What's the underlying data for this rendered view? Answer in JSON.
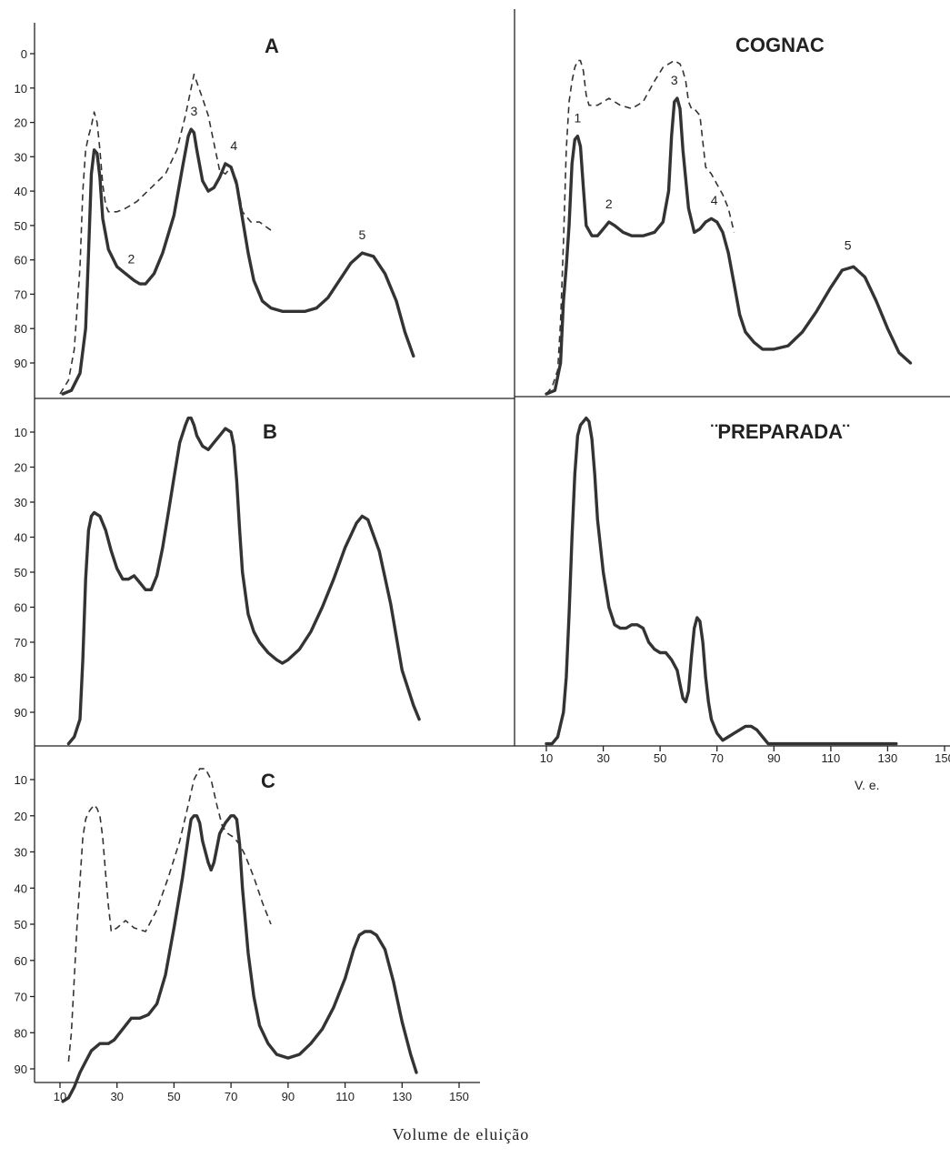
{
  "figure": {
    "caption": "Volume de eluição"
  },
  "chart_data": [
    {
      "type": "line",
      "title": "A",
      "xlabel": "",
      "ylabel": "",
      "y_inverted": true,
      "xlim": [
        8,
        158
      ],
      "ylim": [
        0,
        100
      ],
      "yticks": [
        "0",
        "10",
        "20",
        "30",
        "40",
        "50",
        "60",
        "70",
        "80",
        "90"
      ],
      "ytick_values": [
        0,
        10,
        20,
        30,
        40,
        50,
        60,
        70,
        80,
        90
      ],
      "series": [
        {
          "style": "solid",
          "x": [
            11,
            14,
            17,
            19,
            20,
            21,
            22,
            23,
            24,
            25,
            27,
            30,
            33,
            36,
            38,
            40,
            43,
            46,
            50,
            53,
            55,
            56,
            57,
            58,
            60,
            62,
            64,
            66,
            68,
            70,
            72,
            74,
            76,
            78,
            81,
            84,
            88,
            92,
            96,
            100,
            104,
            108,
            112,
            116,
            120,
            124,
            128,
            131,
            134
          ],
          "y": [
            99,
            98,
            93,
            80,
            58,
            35,
            28,
            29,
            36,
            48,
            57,
            62,
            64,
            66,
            67,
            67,
            64,
            58,
            47,
            33,
            24,
            22,
            23,
            28,
            37,
            40,
            39,
            36,
            32,
            33,
            38,
            48,
            58,
            66,
            72,
            74,
            75,
            75,
            75,
            74,
            71,
            66,
            61,
            58,
            59,
            64,
            72,
            81,
            88
          ]
        },
        {
          "style": "dashed",
          "x": [
            10,
            13,
            15,
            17,
            18,
            19,
            20,
            21,
            22,
            23,
            24,
            25,
            26,
            27,
            28,
            30,
            33,
            37,
            42,
            47,
            51,
            54,
            57,
            60,
            62,
            64,
            66,
            68,
            70,
            72,
            74,
            77,
            80,
            85
          ],
          "y": [
            99,
            95,
            86,
            62,
            40,
            28,
            24,
            21,
            17,
            20,
            28,
            38,
            44,
            46,
            46,
            46,
            45,
            43,
            39,
            35,
            28,
            18,
            6,
            13,
            18,
            26,
            34,
            35,
            33,
            37,
            46,
            49,
            49,
            52
          ]
        }
      ],
      "annotations": [
        {
          "text": "2",
          "x": 35,
          "y": 61
        },
        {
          "text": "3",
          "x": 57,
          "y": 18
        },
        {
          "text": "4",
          "x": 71,
          "y": 28
        },
        {
          "text": "5",
          "x": 116,
          "y": 54
        }
      ]
    },
    {
      "type": "line",
      "title": "COGNAC",
      "xlabel": "",
      "ylabel": "",
      "y_inverted": true,
      "xlim": [
        8,
        158
      ],
      "ylim": [
        0,
        100
      ],
      "series": [
        {
          "style": "solid",
          "x": [
            10,
            13,
            15,
            16,
            17,
            18,
            19,
            20,
            21,
            22,
            23,
            24,
            26,
            28,
            30,
            32,
            34,
            37,
            40,
            44,
            48,
            51,
            53,
            54,
            55,
            56,
            57,
            58,
            60,
            62,
            64,
            66,
            68,
            70,
            72,
            74,
            76,
            78,
            80,
            83,
            86,
            90,
            95,
            100,
            105,
            110,
            114,
            118,
            122,
            126,
            130,
            134,
            138
          ],
          "y": [
            99,
            98,
            90,
            72,
            62,
            50,
            32,
            25,
            24,
            27,
            39,
            50,
            53,
            53,
            51,
            49,
            50,
            52,
            53,
            53,
            52,
            49,
            40,
            24,
            14,
            13,
            16,
            28,
            45,
            52,
            51,
            49,
            48,
            49,
            52,
            58,
            67,
            76,
            81,
            84,
            86,
            86,
            85,
            81,
            75,
            68,
            63,
            62,
            65,
            72,
            80,
            87,
            90
          ]
        },
        {
          "style": "dashed",
          "x": [
            10,
            12,
            14,
            15,
            16,
            17,
            18,
            19,
            20,
            21,
            22,
            23,
            24,
            25,
            26,
            28,
            30,
            32,
            36,
            40,
            44,
            48,
            51,
            53,
            55,
            57,
            58,
            59,
            60,
            61,
            62,
            64,
            66,
            68,
            70,
            72,
            74,
            76
          ],
          "y": [
            99,
            97,
            92,
            78,
            55,
            28,
            14,
            8,
            4,
            2,
            2,
            5,
            12,
            15,
            15,
            15,
            14,
            13,
            15,
            16,
            14,
            8,
            4,
            3,
            2,
            3,
            5,
            8,
            14,
            16,
            16,
            18,
            33,
            35,
            38,
            41,
            45,
            52
          ]
        }
      ],
      "annotations": [
        {
          "text": "1",
          "x": 21,
          "y": 20
        },
        {
          "text": "2",
          "x": 32,
          "y": 45
        },
        {
          "text": "3",
          "x": 55,
          "y": 9
        },
        {
          "text": "4",
          "x": 69,
          "y": 44
        },
        {
          "text": "5",
          "x": 116,
          "y": 57
        }
      ]
    },
    {
      "type": "line",
      "title": "B",
      "xlabel": "",
      "ylabel": "",
      "y_inverted": true,
      "xlim": [
        8,
        158
      ],
      "ylim": [
        0,
        100
      ],
      "yticks": [
        "10",
        "20",
        "30",
        "40",
        "50",
        "60",
        "70",
        "80",
        "90"
      ],
      "ytick_values": [
        10,
        20,
        30,
        40,
        50,
        60,
        70,
        80,
        90
      ],
      "series": [
        {
          "style": "solid",
          "x": [
            13,
            15,
            17,
            18,
            19,
            20,
            21,
            22,
            24,
            26,
            28,
            30,
            32,
            34,
            36,
            38,
            40,
            42,
            44,
            46,
            48,
            50,
            52,
            54,
            55,
            56,
            57,
            58,
            60,
            62,
            64,
            66,
            68,
            70,
            71,
            72,
            73,
            74,
            76,
            78,
            80,
            83,
            86,
            88,
            90,
            94,
            98,
            102,
            106,
            110,
            114,
            116,
            118,
            122,
            126,
            130,
            134,
            136
          ],
          "y": [
            99,
            97,
            92,
            75,
            52,
            38,
            34,
            33,
            34,
            38,
            44,
            49,
            52,
            52,
            51,
            53,
            55,
            55,
            51,
            43,
            33,
            23,
            13,
            8,
            6,
            6,
            8,
            11,
            14,
            15,
            13,
            11,
            9,
            10,
            14,
            24,
            38,
            50,
            62,
            67,
            70,
            73,
            75,
            76,
            75,
            72,
            67,
            60,
            52,
            43,
            36,
            34,
            35,
            44,
            59,
            78,
            88,
            92
          ]
        }
      ]
    },
    {
      "type": "line",
      "title": "¨PREPARADA¨",
      "xlabel": "V. e.",
      "ylabel": "",
      "y_inverted": true,
      "xlim": [
        8,
        158
      ],
      "ylim": [
        0,
        100
      ],
      "xticks": [
        "10",
        "30",
        "50",
        "70",
        "90",
        "110",
        "130",
        "150"
      ],
      "xtick_values": [
        10,
        30,
        50,
        70,
        90,
        110,
        130,
        150
      ],
      "series": [
        {
          "style": "solid",
          "x": [
            10,
            12,
            14,
            16,
            17,
            18,
            19,
            20,
            21,
            22,
            23,
            24,
            25,
            26,
            27,
            28,
            30,
            32,
            34,
            36,
            38,
            40,
            42,
            44,
            46,
            48,
            50,
            52,
            54,
            56,
            57,
            58,
            59,
            60,
            61,
            62,
            63,
            64,
            65,
            66,
            67,
            68,
            70,
            72,
            74,
            76,
            78,
            80,
            82,
            84,
            86,
            88,
            92,
            100,
            110,
            120,
            130,
            133
          ],
          "y": [
            99,
            99,
            97,
            90,
            80,
            62,
            40,
            22,
            11,
            8,
            7,
            6,
            7,
            12,
            22,
            35,
            50,
            60,
            65,
            66,
            66,
            65,
            65,
            66,
            70,
            72,
            73,
            73,
            75,
            78,
            82,
            86,
            87,
            84,
            74,
            66,
            63,
            64,
            70,
            80,
            87,
            92,
            96,
            98,
            97,
            96,
            95,
            94,
            94,
            95,
            97,
            99,
            99,
            99,
            99,
            99,
            99,
            99
          ]
        }
      ]
    },
    {
      "type": "line",
      "title": "C",
      "xlabel": "Volume de eluição",
      "ylabel": "",
      "y_inverted": true,
      "xlim": [
        8,
        158
      ],
      "ylim": [
        0,
        100
      ],
      "yticks": [
        "10",
        "20",
        "30",
        "40",
        "50",
        "60",
        "70",
        "80",
        "90"
      ],
      "ytick_values": [
        10,
        20,
        30,
        40,
        50,
        60,
        70,
        80,
        90
      ],
      "xticks": [
        "10",
        "30",
        "50",
        "70",
        "90",
        "110",
        "130",
        "150"
      ],
      "xtick_values": [
        10,
        30,
        50,
        70,
        90,
        110,
        130,
        150
      ],
      "series": [
        {
          "style": "solid",
          "x": [
            11,
            13,
            15,
            17,
            19,
            21,
            24,
            27,
            29,
            31,
            33,
            35,
            38,
            41,
            44,
            47,
            50,
            53,
            55,
            56,
            57,
            58,
            59,
            60,
            62,
            63,
            64,
            65,
            66,
            68,
            70,
            71,
            72,
            73,
            74,
            76,
            78,
            80,
            83,
            86,
            90,
            94,
            98,
            102,
            106,
            110,
            113,
            115,
            117,
            119,
            121,
            124,
            127,
            130,
            133,
            135
          ],
          "y": [
            99,
            98,
            95,
            91,
            88,
            85,
            83,
            83,
            82,
            80,
            78,
            76,
            76,
            75,
            72,
            64,
            51,
            37,
            26,
            21,
            20,
            20,
            22,
            27,
            33,
            35,
            33,
            29,
            25,
            22,
            20,
            20,
            21,
            28,
            40,
            58,
            70,
            78,
            83,
            86,
            87,
            86,
            83,
            79,
            73,
            65,
            57,
            53,
            52,
            52,
            53,
            57,
            66,
            77,
            86,
            91
          ]
        },
        {
          "style": "dashed",
          "x": [
            13,
            14,
            15,
            16,
            17,
            18,
            19,
            20,
            21,
            22,
            23,
            24,
            25,
            26,
            27,
            28,
            30,
            33,
            36,
            40,
            44,
            48,
            52,
            55,
            57,
            59,
            61,
            63,
            65,
            67,
            69,
            71,
            73,
            75,
            78,
            81,
            84
          ],
          "y": [
            88,
            80,
            65,
            50,
            38,
            26,
            21,
            19,
            18,
            17,
            18,
            20,
            26,
            36,
            45,
            52,
            51,
            49,
            51,
            52,
            46,
            37,
            27,
            17,
            10,
            7,
            7,
            10,
            17,
            23,
            25,
            26,
            28,
            31,
            37,
            44,
            50
          ]
        }
      ]
    }
  ]
}
